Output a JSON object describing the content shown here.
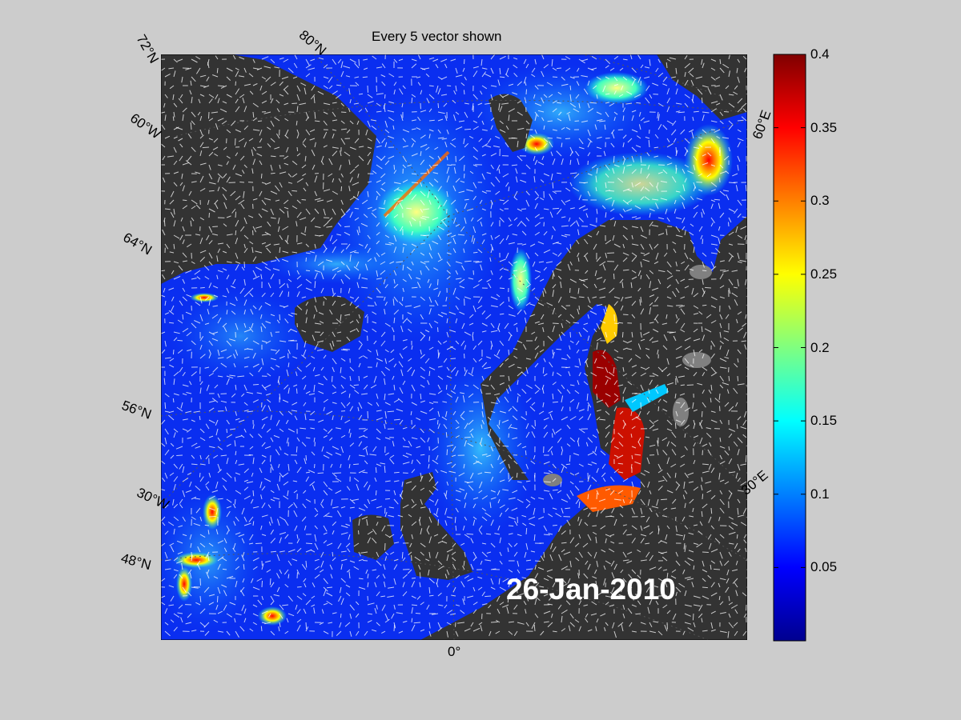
{
  "title": "Every 5 vector shown",
  "date": "26-Jan-2010",
  "graticule_labels": {
    "lat_72": "72°N",
    "lat_80": "80°N",
    "lat_60w": "60°W",
    "lat_64": "64°N",
    "lat_56": "56°N",
    "lon_30w": "30°W",
    "lat_48": "48°N",
    "lon_0": "0°",
    "lon_30e": "30°E",
    "lon_60e": "60°E"
  },
  "colorbar": {
    "min": 0,
    "max": 0.4,
    "ticks": [
      "0.4",
      "0.35",
      "0.3",
      "0.25",
      "0.2",
      "0.15",
      "0.1",
      "0.05"
    ],
    "colormap": "jet"
  },
  "colors": {
    "background": "#cccccc",
    "land": "#333333",
    "lakes": "#808080",
    "vectors": "#ffffff"
  }
}
